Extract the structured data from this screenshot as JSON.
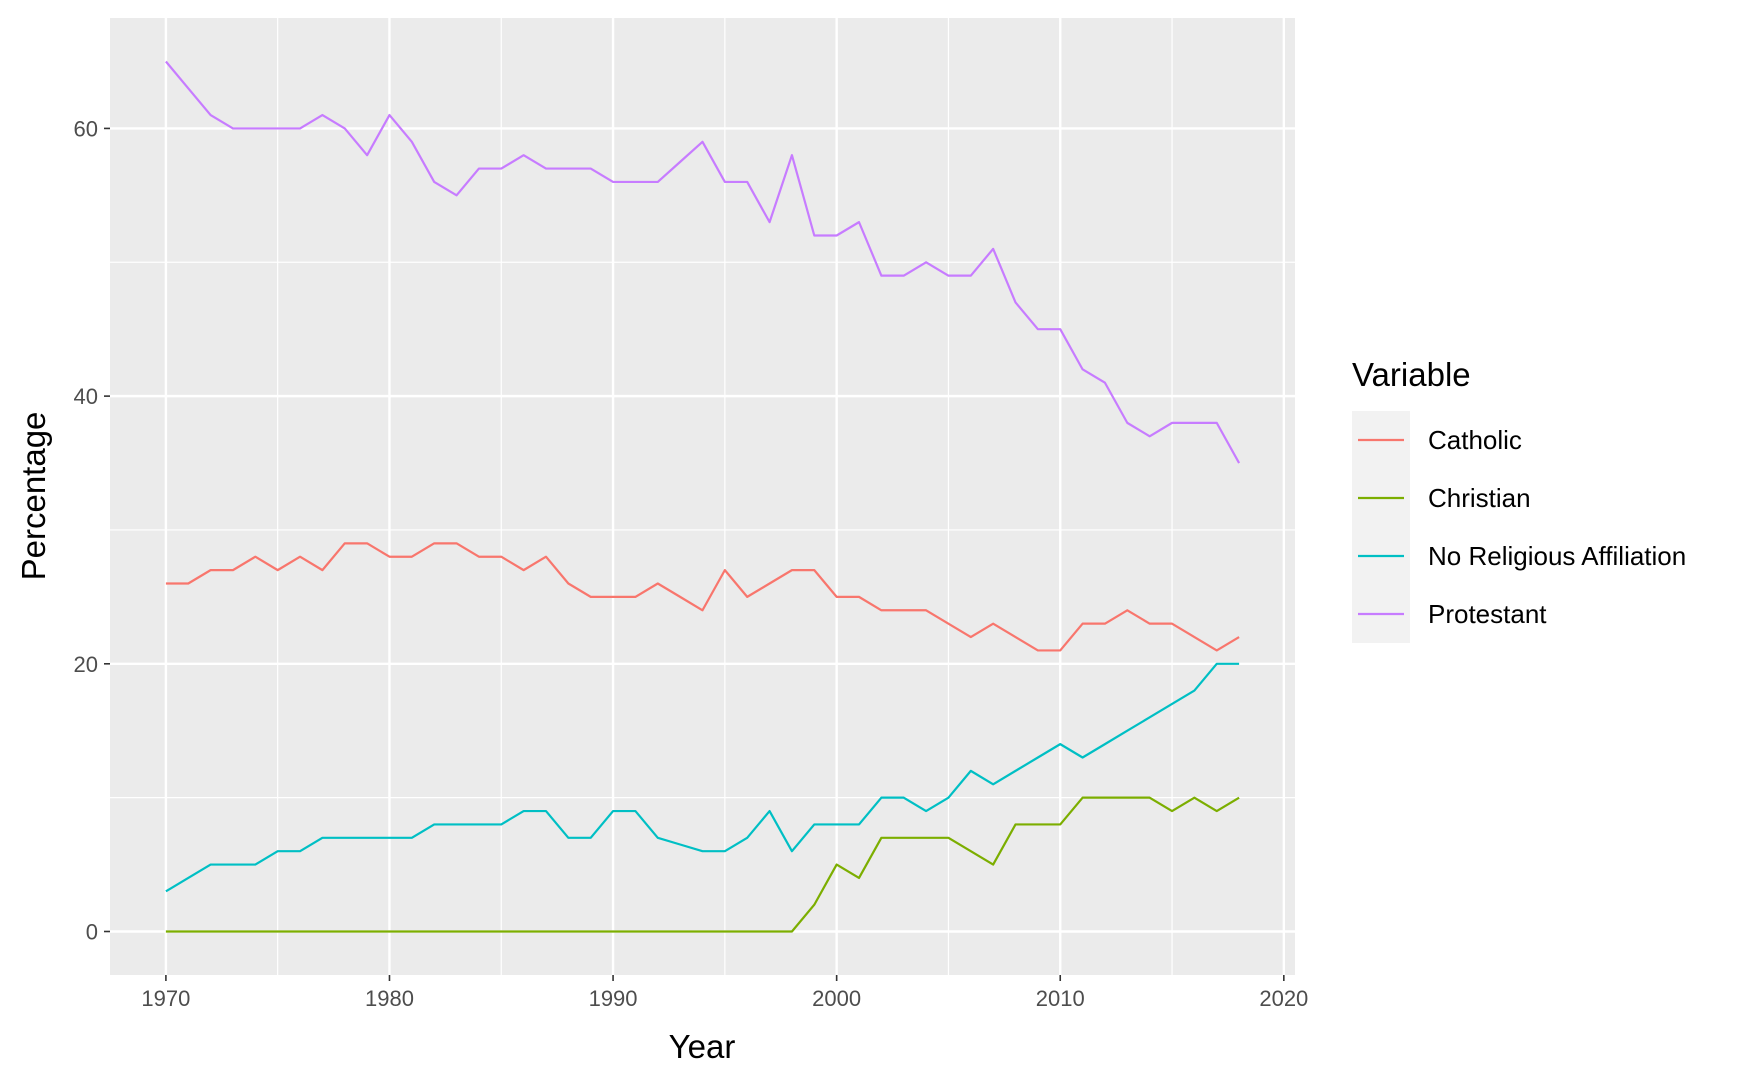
{
  "chart_data": {
    "type": "line",
    "title": "",
    "xlabel": "Year",
    "ylabel": "Percentage",
    "xlim": [
      1967.5,
      2020.5
    ],
    "ylim": [
      -3.25,
      68.25
    ],
    "x_ticks": [
      1970,
      1980,
      1990,
      2000,
      2010,
      2020
    ],
    "y_ticks": [
      0,
      20,
      40,
      60
    ],
    "grid": true,
    "legend": {
      "title": "Variable",
      "position": "right"
    },
    "x": [
      1970,
      1971,
      1972,
      1973,
      1974,
      1975,
      1976,
      1977,
      1978,
      1979,
      1980,
      1981,
      1982,
      1983,
      1984,
      1985,
      1986,
      1987,
      1988,
      1989,
      1990,
      1991,
      1992,
      1993,
      1994,
      1995,
      1996,
      1997,
      1998,
      1999,
      2000,
      2001,
      2002,
      2003,
      2004,
      2005,
      2006,
      2007,
      2008,
      2009,
      2010,
      2011,
      2012,
      2013,
      2014,
      2015,
      2016,
      2017,
      2018
    ],
    "series": [
      {
        "name": "Catholic",
        "color": "#F8766D",
        "values": [
          26,
          26,
          27,
          27,
          28,
          27,
          28,
          27,
          29,
          29,
          28,
          28,
          29,
          29,
          28,
          28,
          27,
          28,
          26,
          25,
          25,
          25,
          26,
          25,
          24,
          27,
          25,
          26,
          27,
          27,
          25,
          25,
          24,
          24,
          24,
          23,
          22,
          23,
          22,
          21,
          21,
          23,
          23,
          24,
          23,
          23,
          22,
          21,
          22
        ]
      },
      {
        "name": "Christian",
        "color": "#7CAE00",
        "values": [
          0,
          0,
          0,
          0,
          0,
          0,
          0,
          0,
          0,
          0,
          0,
          0,
          0,
          0,
          0,
          0,
          0,
          0,
          0,
          0,
          0,
          0,
          0,
          0,
          0,
          0,
          0,
          0,
          0,
          2,
          5,
          4,
          7,
          7,
          7,
          7,
          6,
          5,
          8,
          8,
          8,
          10,
          10,
          10,
          10,
          9,
          10,
          9,
          10
        ]
      },
      {
        "name": "No Religious Affiliation",
        "color": "#00BFC4",
        "values": [
          3,
          4,
          5,
          5,
          5,
          6,
          6,
          7,
          7,
          7,
          7,
          7,
          8,
          8,
          8,
          8,
          9,
          9,
          7,
          7,
          9,
          9,
          7,
          6.5,
          6,
          6,
          7,
          9,
          6,
          8,
          8,
          8,
          10,
          10,
          9,
          10,
          12,
          11,
          12,
          13,
          14,
          13,
          14,
          15,
          16,
          17,
          18,
          20,
          20
        ]
      },
      {
        "name": "Protestant",
        "color": "#C77CFF",
        "values": [
          65,
          63,
          61,
          60,
          60,
          60,
          60,
          61,
          60,
          58,
          61,
          59,
          56,
          55,
          57,
          57,
          58,
          57,
          57,
          57,
          56,
          56,
          56,
          57.5,
          59,
          56,
          56,
          53,
          58,
          52,
          52,
          53,
          49,
          49,
          50,
          49,
          49,
          51,
          47,
          45,
          45,
          42,
          41,
          38,
          37,
          38,
          38,
          38,
          35
        ]
      }
    ]
  }
}
